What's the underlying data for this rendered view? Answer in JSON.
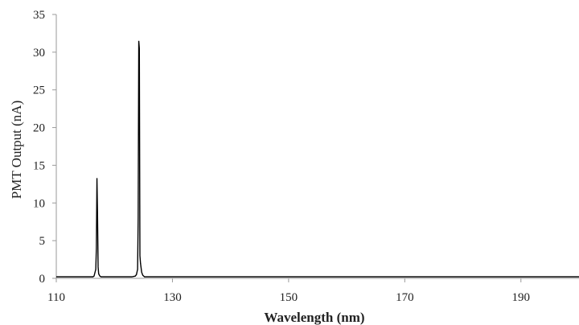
{
  "chart_data": {
    "type": "line",
    "title": "",
    "xlabel": "Wavelength (nm)",
    "ylabel": "PMT Output (nA)",
    "xlim": [
      110,
      200
    ],
    "ylim": [
      0,
      35
    ],
    "xticks": [
      110,
      130,
      150,
      170,
      190
    ],
    "yticks": [
      0,
      5,
      10,
      15,
      20,
      25,
      30,
      35
    ],
    "grid": false,
    "legend": "none",
    "line_color": "#000000",
    "series": [
      {
        "x": [
          110,
          116.3,
          116.5,
          116.6,
          116.8,
          116.9,
          117.0,
          117.1,
          117.2,
          117.3,
          117.5,
          117.7,
          123.0,
          123.6,
          123.8,
          124.0,
          124.1,
          124.2,
          124.3,
          124.4,
          124.5,
          124.7,
          124.9,
          125.2,
          130,
          140,
          150,
          160,
          170,
          180,
          190,
          200
        ],
        "y": [
          0.2,
          0.2,
          0.3,
          0.6,
          1.2,
          4.0,
          13.3,
          8.5,
          1.5,
          0.6,
          0.3,
          0.2,
          0.2,
          0.3,
          0.5,
          1.2,
          8.0,
          31.5,
          30.5,
          3.0,
          2.0,
          0.8,
          0.4,
          0.2,
          0.2,
          0.2,
          0.2,
          0.2,
          0.2,
          0.2,
          0.2,
          0.2
        ]
      }
    ]
  }
}
